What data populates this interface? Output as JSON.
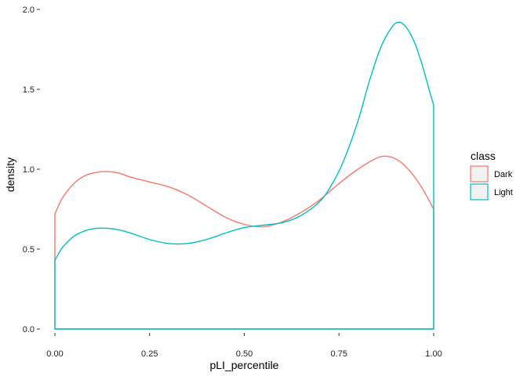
{
  "chart_data": {
    "type": "area",
    "title": "",
    "xlabel": "pLI_percentile",
    "ylabel": "density",
    "xlim": [
      0,
      1
    ],
    "ylim": [
      0,
      2
    ],
    "x_ticks": [
      0,
      0.25,
      0.5,
      0.75,
      1
    ],
    "x_tick_labels": [
      "0.00",
      "0.25",
      "0.50",
      "0.75",
      "1.00"
    ],
    "y_ticks": [
      0,
      0.5,
      1,
      1.5,
      2
    ],
    "y_tick_labels": [
      "0.0",
      "0.5",
      "1.0",
      "1.5",
      "2.0"
    ],
    "grid": false,
    "legend": {
      "title": "class",
      "position": "right",
      "entries": [
        {
          "label": "Dark",
          "color": "#F8766D"
        },
        {
          "label": "Light",
          "color": "#00BFC4"
        }
      ]
    },
    "series": [
      {
        "name": "Dark",
        "color": "#F8766D",
        "x": [
          0,
          0.02,
          0.05,
          0.08,
          0.11,
          0.14,
          0.17,
          0.2,
          0.25,
          0.3,
          0.35,
          0.4,
          0.45,
          0.5,
          0.55,
          0.6,
          0.65,
          0.7,
          0.75,
          0.8,
          0.85,
          0.88,
          0.91,
          0.94,
          0.97,
          1.0
        ],
        "y": [
          0.72,
          0.82,
          0.91,
          0.96,
          0.98,
          0.985,
          0.975,
          0.95,
          0.92,
          0.89,
          0.84,
          0.77,
          0.7,
          0.655,
          0.64,
          0.67,
          0.73,
          0.81,
          0.91,
          1.0,
          1.07,
          1.08,
          1.05,
          0.98,
          0.88,
          0.75
        ]
      },
      {
        "name": "Light",
        "color": "#00BFC4",
        "x": [
          0,
          0.02,
          0.05,
          0.08,
          0.11,
          0.14,
          0.17,
          0.2,
          0.25,
          0.3,
          0.35,
          0.4,
          0.45,
          0.5,
          0.55,
          0.6,
          0.65,
          0.7,
          0.73,
          0.76,
          0.8,
          0.83,
          0.86,
          0.89,
          0.91,
          0.93,
          0.95,
          0.97,
          0.99,
          1.0
        ],
        "y": [
          0.43,
          0.51,
          0.58,
          0.615,
          0.63,
          0.63,
          0.62,
          0.6,
          0.56,
          0.535,
          0.535,
          0.56,
          0.6,
          0.635,
          0.65,
          0.665,
          0.71,
          0.8,
          0.9,
          1.04,
          1.3,
          1.55,
          1.76,
          1.89,
          1.92,
          1.88,
          1.79,
          1.65,
          1.48,
          1.4
        ]
      }
    ]
  }
}
